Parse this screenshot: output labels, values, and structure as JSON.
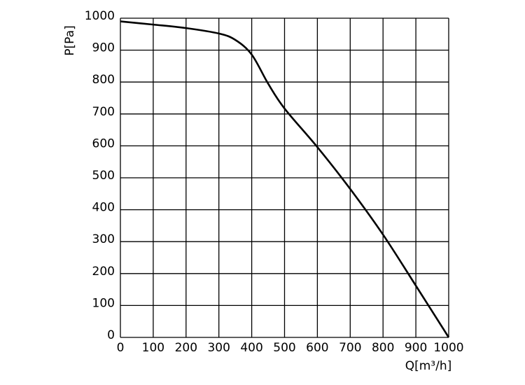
{
  "chart_data": {
    "type": "line",
    "xlabel": "Q[m³/h]",
    "ylabel": "P[Pa]",
    "x": [
      0,
      100,
      200,
      300,
      350,
      400,
      450,
      500,
      600,
      700,
      800,
      900,
      1000
    ],
    "series": [
      {
        "color": "#000000",
        "values": [
          990,
          980,
          969,
          952,
          932,
          886,
          795,
          717,
          596,
          465,
          322,
          162,
          0
        ]
      }
    ],
    "xlim": [
      0,
      1000
    ],
    "ylim": [
      0,
      1000
    ],
    "xticks": [
      0,
      100,
      200,
      300,
      400,
      500,
      600,
      700,
      800,
      900,
      1000
    ],
    "yticks": [
      0,
      100,
      200,
      300,
      400,
      500,
      600,
      700,
      800,
      900,
      1000
    ],
    "grid": true
  }
}
